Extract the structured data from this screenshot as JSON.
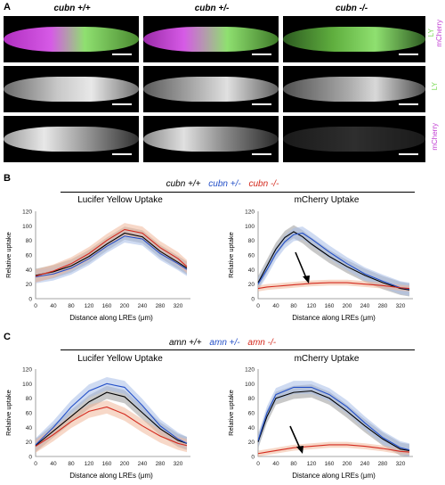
{
  "panel_a": {
    "letter": "A",
    "columns": [
      "cubn +/+",
      "cubn +/-",
      "cubn -/-"
    ],
    "row_labels": {
      "merge_ly": "LY",
      "merge_mcherry": "mCherry",
      "ly": "LY",
      "mcherry": "mCherry"
    },
    "colors": {
      "ly": "#7cd957",
      "mcherry": "#c23fd3"
    }
  },
  "panel_b": {
    "letter": "B",
    "legend": [
      {
        "label": "cubn +/+",
        "color": "#000000"
      },
      {
        "label": "cubn +/-",
        "color": "#2450c8"
      },
      {
        "label": "cubn -/-",
        "color": "#d42a1e"
      }
    ],
    "titles": [
      "Lucifer Yellow Uptake",
      "mCherry Uptake"
    ],
    "ylabel": "Relative uptake",
    "xlabel": "Distance along LREs (μm)"
  },
  "panel_c": {
    "letter": "C",
    "legend": [
      {
        "label": "amn +/+",
        "color": "#000000"
      },
      {
        "label": "amn +/-",
        "color": "#2450c8"
      },
      {
        "label": "amn -/-",
        "color": "#d42a1e"
      }
    ],
    "titles": [
      "Lucifer Yellow Uptake",
      "mCherry Uptake"
    ],
    "ylabel": "Relative uptake",
    "xlabel": "Distance along LREs (μm)"
  },
  "chart_data": [
    {
      "type": "line",
      "ylabel": "Relative uptake",
      "xlabel": "Distance along LREs (μm)",
      "xlim": [
        0,
        340
      ],
      "ylim": [
        0,
        120
      ],
      "xticks": [
        0,
        40,
        80,
        120,
        160,
        200,
        240,
        280,
        320
      ],
      "yticks": [
        0,
        20,
        40,
        60,
        80,
        100,
        120
      ],
      "x": [
        0,
        40,
        80,
        120,
        160,
        200,
        240,
        280,
        320,
        340
      ],
      "series": [
        {
          "name": "cubn +/+",
          "color": "#000000",
          "band": "#9a9a9a",
          "values": [
            32,
            37,
            45,
            58,
            75,
            90,
            85,
            65,
            50,
            42
          ]
        },
        {
          "name": "cubn +/-",
          "color": "#2450c8",
          "band": "#a8bde8",
          "values": [
            30,
            34,
            42,
            55,
            72,
            86,
            82,
            62,
            48,
            40
          ]
        },
        {
          "name": "cubn -/-",
          "color": "#d42a1e",
          "band": "#f0b89a",
          "values": [
            31,
            38,
            48,
            62,
            80,
            95,
            90,
            70,
            55,
            44
          ]
        }
      ]
    },
    {
      "type": "line",
      "ylabel": "Relative uptake",
      "xlabel": "Distance along LREs (μm)",
      "xlim": [
        0,
        340
      ],
      "ylim": [
        0,
        120
      ],
      "xticks": [
        0,
        40,
        80,
        120,
        160,
        200,
        240,
        280,
        320
      ],
      "yticks": [
        0,
        20,
        40,
        60,
        80,
        100,
        120
      ],
      "x": [
        0,
        20,
        40,
        60,
        80,
        100,
        120,
        160,
        200,
        240,
        280,
        320,
        340
      ],
      "series": [
        {
          "name": "cubn +/+",
          "color": "#000000",
          "band": "#9a9a9a",
          "values": [
            22,
            45,
            68,
            84,
            92,
            85,
            75,
            58,
            44,
            32,
            22,
            14,
            12
          ]
        },
        {
          "name": "cubn +/-",
          "color": "#2450c8",
          "band": "#a8bde8",
          "values": [
            20,
            40,
            62,
            78,
            88,
            90,
            82,
            64,
            48,
            34,
            24,
            15,
            13
          ]
        },
        {
          "name": "cubn -/-",
          "color": "#d42a1e",
          "band": "#f0b89a",
          "values": [
            14,
            16,
            17,
            18,
            19,
            20,
            21,
            22,
            22,
            20,
            18,
            15,
            14
          ]
        }
      ]
    },
    {
      "type": "line",
      "ylabel": "Relative uptake",
      "xlabel": "Distance along LREs (μm)",
      "xlim": [
        0,
        340
      ],
      "ylim": [
        0,
        120
      ],
      "xticks": [
        0,
        40,
        80,
        120,
        160,
        200,
        240,
        280,
        320
      ],
      "yticks": [
        0,
        20,
        40,
        60,
        80,
        100,
        120
      ],
      "x": [
        0,
        40,
        80,
        120,
        160,
        200,
        240,
        280,
        320,
        340
      ],
      "series": [
        {
          "name": "amn +/+",
          "color": "#000000",
          "band": "#9a9a9a",
          "values": [
            15,
            35,
            55,
            75,
            88,
            82,
            60,
            38,
            22,
            18
          ]
        },
        {
          "name": "amn +/-",
          "color": "#2450c8",
          "band": "#a8bde8",
          "values": [
            16,
            40,
            68,
            90,
            100,
            95,
            70,
            42,
            24,
            18
          ]
        },
        {
          "name": "amn -/-",
          "color": "#d42a1e",
          "band": "#f0b89a",
          "values": [
            14,
            30,
            48,
            62,
            68,
            58,
            42,
            28,
            18,
            15
          ]
        }
      ]
    },
    {
      "type": "line",
      "ylabel": "Relative uptake",
      "xlabel": "Distance along LREs (μm)",
      "xlim": [
        0,
        340
      ],
      "ylim": [
        0,
        120
      ],
      "xticks": [
        0,
        40,
        80,
        120,
        160,
        200,
        240,
        280,
        320
      ],
      "yticks": [
        0,
        20,
        40,
        60,
        80,
        100,
        120
      ],
      "x": [
        0,
        20,
        40,
        80,
        120,
        160,
        200,
        240,
        280,
        320,
        340
      ],
      "series": [
        {
          "name": "amn +/+",
          "color": "#000000",
          "band": "#9a9a9a",
          "values": [
            20,
            55,
            80,
            88,
            90,
            80,
            62,
            42,
            24,
            10,
            8
          ]
        },
        {
          "name": "amn +/-",
          "color": "#2450c8",
          "band": "#a8bde8",
          "values": [
            22,
            60,
            85,
            95,
            95,
            85,
            68,
            46,
            26,
            12,
            9
          ]
        },
        {
          "name": "amn -/-",
          "color": "#d42a1e",
          "band": "#f0b89a",
          "values": [
            4,
            6,
            8,
            12,
            14,
            16,
            16,
            14,
            11,
            7,
            6
          ]
        }
      ]
    }
  ]
}
